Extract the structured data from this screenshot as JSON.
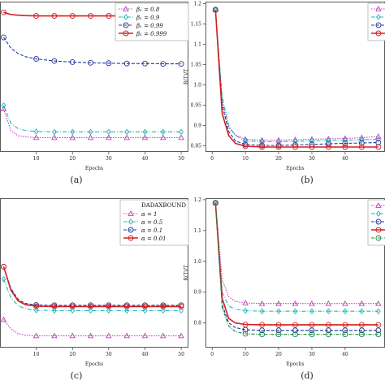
{
  "chart_data": [
    {
      "panel": "(a)",
      "type": "line",
      "xlabel": "Epochs",
      "ylabel": "",
      "xlim": [
        0,
        52
      ],
      "ylim": [
        0.8,
        1.22
      ],
      "xticks": [
        10,
        20,
        30,
        40,
        50
      ],
      "yticks": [],
      "legend_title": "",
      "legend_position": "top-right",
      "x": [
        1,
        3,
        5,
        7,
        10,
        15,
        20,
        25,
        30,
        35,
        40,
        45,
        50
      ],
      "series": [
        {
          "name": "β₁ = 0.8",
          "color": "#c040c0",
          "dash": "1.5,1.5",
          "marker": "triangle",
          "values": [
            0.92,
            0.86,
            0.845,
            0.842,
            0.84,
            0.84,
            0.84,
            0.84,
            0.84,
            0.84,
            0.84,
            0.84,
            0.84
          ]
        },
        {
          "name": "β₁ = 0.9",
          "color": "#20b8b8",
          "dash": "5,2,1,2",
          "marker": "diamond",
          "values": [
            0.93,
            0.88,
            0.865,
            0.86,
            0.857,
            0.856,
            0.856,
            0.856,
            0.856,
            0.856,
            0.856,
            0.856,
            0.856
          ]
        },
        {
          "name": "β₁ = 0.99",
          "color": "#223a9a",
          "dash": "4,2",
          "marker": "circle",
          "values": [
            1.12,
            1.09,
            1.075,
            1.066,
            1.06,
            1.054,
            1.051,
            1.049,
            1.048,
            1.047,
            1.047,
            1.046,
            1.046
          ]
        },
        {
          "name": "β₁ = 0.999",
          "color": "#d42020",
          "dash": "",
          "marker": "circle",
          "values": [
            1.19,
            1.184,
            1.182,
            1.181,
            1.18,
            1.18,
            1.18,
            1.18,
            1.18,
            1.18,
            1.18,
            1.18,
            1.18
          ]
        }
      ]
    },
    {
      "panel": "(b)",
      "type": "line",
      "xlabel": "Epochs",
      "ylabel": "R(T)/T",
      "xlim": [
        -2,
        52
      ],
      "ylim": [
        0.835,
        1.205
      ],
      "xticks": [
        0,
        10,
        20,
        30,
        40
      ],
      "yticks": [
        0.85,
        0.9,
        0.95,
        1.0,
        1.05,
        1.1,
        1.15,
        1.2
      ],
      "legend_title": "",
      "legend_position": "top-right",
      "x": [
        1,
        3,
        5,
        7,
        10,
        15,
        20,
        25,
        30,
        35,
        40,
        45,
        50
      ],
      "series": [
        {
          "name": "",
          "color": "#c040c0",
          "dash": "1.5,1.5",
          "marker": "triangle",
          "values": [
            1.185,
            0.96,
            0.895,
            0.877,
            0.866,
            0.864,
            0.864,
            0.865,
            0.866,
            0.867,
            0.868,
            0.87,
            0.873
          ]
        },
        {
          "name": "",
          "color": "#20b8b8",
          "dash": "5,2,1,2",
          "marker": "diamond",
          "values": [
            1.185,
            0.97,
            0.9,
            0.875,
            0.862,
            0.86,
            0.86,
            0.861,
            0.862,
            0.863,
            0.864,
            0.865,
            0.866
          ]
        },
        {
          "name": "",
          "color": "#223a9a",
          "dash": "4,2",
          "marker": "circle",
          "values": [
            1.185,
            0.95,
            0.885,
            0.862,
            0.853,
            0.851,
            0.851,
            0.852,
            0.853,
            0.855,
            0.856,
            0.857,
            0.858
          ]
        },
        {
          "name": "",
          "color": "#d42020",
          "dash": "",
          "marker": "circle",
          "values": [
            1.185,
            0.93,
            0.875,
            0.856,
            0.849,
            0.847,
            0.847,
            0.847,
            0.847,
            0.847,
            0.847,
            0.847,
            0.847
          ]
        }
      ]
    },
    {
      "panel": "(c)",
      "type": "line",
      "xlabel": "Epochs",
      "ylabel": "",
      "xlim": [
        0,
        52
      ],
      "ylim": [
        0.74,
        1.22
      ],
      "xticks": [
        10,
        20,
        30,
        40,
        50
      ],
      "yticks": [],
      "legend_title": "DADAXBOUND",
      "legend_position": "top-right",
      "x": [
        1,
        3,
        5,
        7,
        10,
        15,
        20,
        25,
        30,
        35,
        40,
        45,
        50
      ],
      "series": [
        {
          "name": "α = 1",
          "color": "#c040c0",
          "dash": "1.5,1.5",
          "marker": "triangle",
          "values": [
            0.83,
            0.8,
            0.785,
            0.78,
            0.778,
            0.778,
            0.778,
            0.778,
            0.778,
            0.778,
            0.778,
            0.778,
            0.778
          ]
        },
        {
          "name": "α = 0.5",
          "color": "#20b8b8",
          "dash": "5,2,1,2",
          "marker": "diamond",
          "values": [
            0.96,
            0.9,
            0.875,
            0.865,
            0.86,
            0.859,
            0.859,
            0.859,
            0.859,
            0.859,
            0.859,
            0.859,
            0.859
          ]
        },
        {
          "name": "α = 0.1",
          "color": "#223a9a",
          "dash": "4,2",
          "marker": "circle",
          "values": [
            1.0,
            0.93,
            0.895,
            0.882,
            0.877,
            0.876,
            0.876,
            0.876,
            0.876,
            0.876,
            0.876,
            0.876,
            0.876
          ]
        },
        {
          "name": "α = 0.01",
          "color": "#d42020",
          "dash": "",
          "marker": "circle",
          "values": [
            1.0,
            0.925,
            0.89,
            0.878,
            0.873,
            0.872,
            0.872,
            0.872,
            0.872,
            0.872,
            0.872,
            0.872,
            0.872
          ]
        }
      ]
    },
    {
      "panel": "(d)",
      "type": "line",
      "xlabel": "Epochs",
      "ylabel": "R(T)/T",
      "xlim": [
        -2,
        52
      ],
      "ylim": [
        0.72,
        1.205
      ],
      "xticks": [
        0,
        10,
        20,
        30,
        40
      ],
      "yticks": [
        0.8,
        0.9,
        1.0,
        1.1,
        1.2
      ],
      "legend_title": "",
      "legend_position": "top-right",
      "x": [
        1,
        3,
        5,
        7,
        10,
        15,
        20,
        25,
        30,
        35,
        40,
        45,
        50
      ],
      "series": [
        {
          "name": "",
          "color": "#c040c0",
          "dash": "1.5,1.5",
          "marker": "triangle",
          "values": [
            1.19,
            0.94,
            0.885,
            0.87,
            0.865,
            0.863,
            0.863,
            0.863,
            0.863,
            0.863,
            0.863,
            0.863,
            0.863
          ]
        },
        {
          "name": "",
          "color": "#20b8b8",
          "dash": "5,2,1,2",
          "marker": "diamond",
          "values": [
            1.19,
            0.9,
            0.855,
            0.845,
            0.84,
            0.838,
            0.838,
            0.838,
            0.838,
            0.838,
            0.838,
            0.838,
            0.838
          ]
        },
        {
          "name": "",
          "color": "#223a9a",
          "dash": "4,2",
          "marker": "circle",
          "values": [
            1.19,
            0.86,
            0.8,
            0.785,
            0.778,
            0.776,
            0.776,
            0.776,
            0.776,
            0.776,
            0.776,
            0.776,
            0.776
          ]
        },
        {
          "name": "",
          "color": "#d42020",
          "dash": "",
          "marker": "circle",
          "values": [
            1.19,
            0.88,
            0.815,
            0.8,
            0.795,
            0.794,
            0.794,
            0.794,
            0.794,
            0.794,
            0.794,
            0.794,
            0.794
          ]
        },
        {
          "name": "",
          "color": "#1a8a3a",
          "dash": "4,1.5,1,1.5",
          "marker": "circle",
          "values": [
            1.19,
            0.85,
            0.79,
            0.772,
            0.765,
            0.763,
            0.763,
            0.763,
            0.763,
            0.763,
            0.763,
            0.763,
            0.763
          ]
        }
      ]
    }
  ]
}
